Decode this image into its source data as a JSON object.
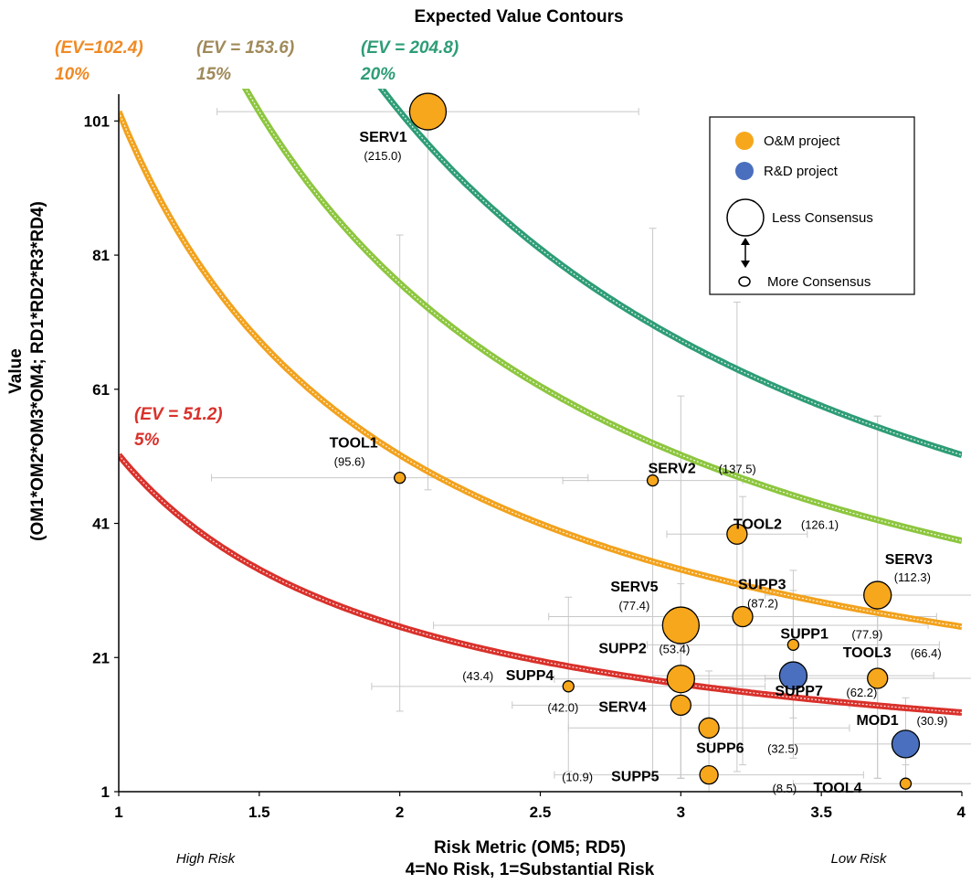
{
  "chart_data": {
    "type": "scatter",
    "title": "Expected Value Contours",
    "ylabel_line1": "Value",
    "ylabel_line2": "(OM1*OM2*OM3*OM4; RD1*RD2*R3*RD4)",
    "xlabel_line1": "Risk Metric (OM5; RD5)",
    "xlabel_line2": "4=No Risk, 1=Substantial Risk",
    "x_sub_left": "High Risk",
    "x_sub_right": "Low Risk",
    "xlim": [
      1,
      4
    ],
    "ylim": [
      1,
      105
    ],
    "x_ticks": [
      "1",
      "1.5",
      "2",
      "2.5",
      "3",
      "3.5",
      "4"
    ],
    "x_tick_values": [
      1,
      1.5,
      2,
      2.5,
      3,
      3.5,
      4
    ],
    "y_ticks": [
      "1",
      "21",
      "41",
      "61",
      "81",
      "101"
    ],
    "y_tick_values": [
      1,
      21,
      41,
      61,
      81,
      101
    ],
    "contours": [
      {
        "ev": 51.2,
        "label_ev": "(EV = 51.2)",
        "label_pct": "5%",
        "color": "#d9312b",
        "label_color": "#d9312b"
      },
      {
        "ev": 102.4,
        "label_ev": "(EV=102.4)",
        "label_pct": "10%",
        "color": "#f2a21d",
        "label_color": "#f08a24"
      },
      {
        "ev": 153.6,
        "label_ev": "(EV = 153.6)",
        "label_pct": "15%",
        "color": "#8dc63f",
        "label_color": "#a08a5a"
      },
      {
        "ev": 204.8,
        "label_ev": "(EV = 204.8)",
        "label_pct": "20%",
        "color": "#2e9d76",
        "label_color": "#2e9d76"
      }
    ],
    "points": [
      {
        "name": "SERV1",
        "ev": "(215.0)",
        "x": 2.1,
        "y": 102.4,
        "size": 20,
        "type": "om",
        "xerr": [
          1.35,
          2.85
        ],
        "yerr": [
          46,
          102.4
        ]
      },
      {
        "name": "TOOL1",
        "ev": "(95.6)",
        "x": 2.0,
        "y": 47.8,
        "size": 6,
        "type": "om",
        "xerr": [
          1.33,
          2.67
        ],
        "yerr": [
          13,
          84
        ]
      },
      {
        "name": "SERV2",
        "ev": "(137.5)",
        "x": 2.9,
        "y": 47.4,
        "size": 6,
        "type": "om",
        "xerr": [
          2.58,
          3.22
        ],
        "yerr": [
          3,
          85
        ]
      },
      {
        "name": "TOOL2",
        "ev": "(126.1)",
        "x": 3.2,
        "y": 39.4,
        "size": 11,
        "type": "om",
        "xerr": [
          2.95,
          3.45
        ],
        "yerr": [
          4,
          74
        ]
      },
      {
        "name": "SERV3",
        "ev": "(112.3)",
        "x": 3.7,
        "y": 30.3,
        "size": 15,
        "type": "om",
        "xerr": [
          3.3,
          4.1
        ],
        "yerr": [
          3,
          57
        ]
      },
      {
        "name": "SERV5",
        "ev": "(77.4)",
        "x": 3.0,
        "y": 25.8,
        "size": 20,
        "type": "om",
        "xerr": [
          2.12,
          3.88
        ],
        "yerr": [
          3,
          60
        ]
      },
      {
        "name": "SUPP3",
        "ev": "(87.2)",
        "x": 3.22,
        "y": 27.1,
        "size": 11,
        "type": "om",
        "xerr": [
          2.53,
          3.91
        ],
        "yerr": [
          5,
          45
        ]
      },
      {
        "name": "SUPP1",
        "ev": "(77.9)",
        "x": 3.4,
        "y": 22.9,
        "size": 6,
        "type": "om",
        "xerr": [
          2.88,
          3.92
        ],
        "yerr": [
          12,
          34
        ]
      },
      {
        "name": "SUPP2",
        "ev": "(53.4)",
        "x": 3.0,
        "y": 17.8,
        "size": 15,
        "type": "om",
        "xerr": [
          2.55,
          3.45
        ],
        "yerr": [
          3,
          32
        ]
      },
      {
        "name": "SUPP4",
        "ev": "(43.4)",
        "x": 2.6,
        "y": 16.7,
        "size": 6,
        "type": "om",
        "xerr": [
          1.9,
          3.3
        ],
        "yerr": [
          4,
          30
        ]
      },
      {
        "name": "SUPP7",
        "ev": "(62.2)",
        "x": 3.4,
        "y": 18.3,
        "size": 15,
        "type": "rd",
        "xerr": [
          2.9,
          3.9
        ],
        "yerr": [
          6,
          31
        ]
      },
      {
        "name": "TOOL3",
        "ev": "(66.4)",
        "x": 3.7,
        "y": 17.9,
        "size": 11,
        "type": "om",
        "xerr": [
          3.3,
          4.1
        ],
        "yerr": [
          3,
          32
        ]
      },
      {
        "name": "SERV4",
        "ev": "(42.0)",
        "x": 3.0,
        "y": 13.9,
        "size": 11,
        "type": "om",
        "xerr": [
          2.4,
          3.6
        ],
        "yerr": [
          3,
          26
        ]
      },
      {
        "name": "MOD1",
        "ev": "(30.9)",
        "x": 3.8,
        "y": 8.1,
        "size": 15,
        "type": "rd",
        "xerr": [
          3.4,
          4.1
        ],
        "yerr": [
          2,
          15
        ]
      },
      {
        "name": "SUPP6",
        "ev": "(32.5)",
        "x": 3.1,
        "y": 10.5,
        "size": 11,
        "type": "om",
        "xerr": [
          2.6,
          3.6
        ],
        "yerr": [
          3,
          19
        ]
      },
      {
        "name": "SUPP5",
        "ev": "(10.9)",
        "x": 3.1,
        "y": 3.5,
        "size": 10,
        "type": "om",
        "xerr": [
          2.55,
          3.65
        ],
        "yerr": [
          1,
          8
        ]
      },
      {
        "name": "TOOL4",
        "ev": "(8.5)",
        "x": 3.8,
        "y": 2.2,
        "size": 6,
        "type": "om",
        "xerr": [
          3.4,
          4.1
        ],
        "yerr": [
          1,
          5
        ]
      }
    ],
    "legend": {
      "position": "top-right",
      "items": [
        "O&M project",
        "R&D project",
        "Less Consensus",
        "More Consensus"
      ],
      "om_color": "#f7a71b",
      "rd_color": "#4a6fbe"
    },
    "grid": false
  }
}
